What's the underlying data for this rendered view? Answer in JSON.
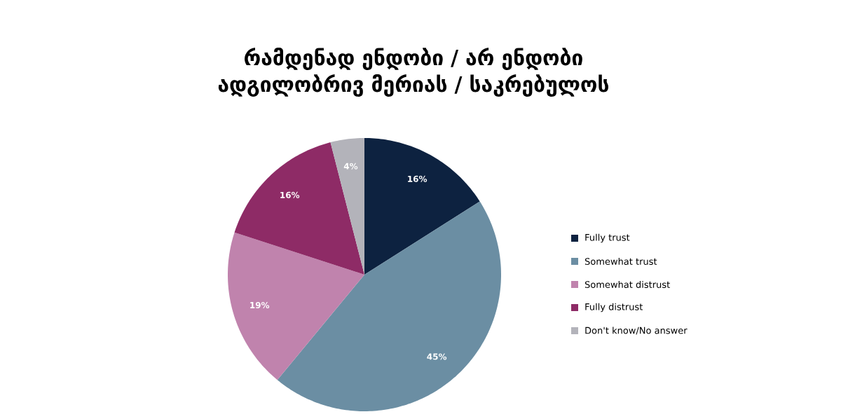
{
  "chart_data": {
    "type": "pie",
    "title": "რამდენად ენდობი / არ ენდობი ადგილობრივ მერიას / საკრებულოს",
    "categories": [
      "Fully trust",
      "Somewhat trust",
      "Somewhat distrust",
      "Fully distrust",
      "Don't know/No answer"
    ],
    "values": [
      16,
      45,
      19,
      16,
      4
    ],
    "colors": [
      "#0d2240",
      "#6b8ea3",
      "#c083ad",
      "#8e2b66",
      "#b3b3ba"
    ],
    "value_labels": [
      "16%",
      "45%",
      "19%",
      "16%",
      "4%"
    ],
    "legend": "right"
  }
}
